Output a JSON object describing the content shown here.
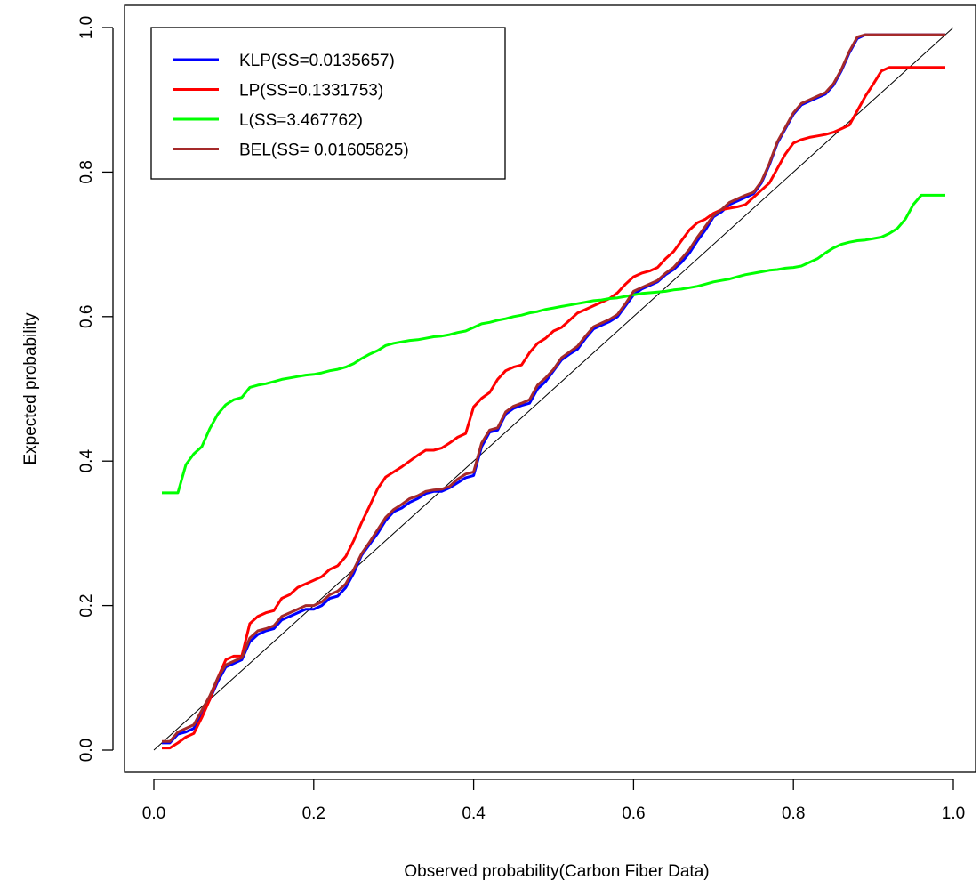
{
  "chart_data": {
    "type": "line",
    "title": "",
    "xlabel": "Observed probability(Carbon Fiber Data)",
    "ylabel": "Expected probability",
    "xlim": [
      0.0,
      1.0
    ],
    "ylim": [
      0.0,
      1.0
    ],
    "xticks": [
      "0.0",
      "0.2",
      "0.4",
      "0.6",
      "0.8",
      "1.0"
    ],
    "yticks": [
      "0.0",
      "0.2",
      "0.4",
      "0.6",
      "0.8",
      "1.0"
    ],
    "grid": false,
    "legend_position": "top-left",
    "reference_line": {
      "x": [
        0.0,
        1.0
      ],
      "y": [
        0.0,
        1.0
      ],
      "color": "#000000"
    },
    "x": [
      0.01,
      0.02,
      0.03,
      0.04,
      0.05,
      0.06,
      0.07,
      0.08,
      0.09,
      0.1,
      0.11,
      0.12,
      0.13,
      0.14,
      0.15,
      0.16,
      0.17,
      0.18,
      0.19,
      0.2,
      0.21,
      0.22,
      0.23,
      0.24,
      0.25,
      0.26,
      0.27,
      0.28,
      0.29,
      0.3,
      0.31,
      0.32,
      0.33,
      0.34,
      0.35,
      0.36,
      0.37,
      0.38,
      0.39,
      0.4,
      0.41,
      0.42,
      0.43,
      0.44,
      0.45,
      0.46,
      0.47,
      0.48,
      0.49,
      0.5,
      0.51,
      0.52,
      0.53,
      0.54,
      0.55,
      0.56,
      0.57,
      0.58,
      0.59,
      0.6,
      0.61,
      0.62,
      0.63,
      0.64,
      0.65,
      0.66,
      0.67,
      0.68,
      0.69,
      0.7,
      0.71,
      0.72,
      0.73,
      0.74,
      0.75,
      0.76,
      0.77,
      0.78,
      0.79,
      0.8,
      0.81,
      0.82,
      0.83,
      0.84,
      0.85,
      0.86,
      0.87,
      0.88,
      0.89,
      0.9,
      0.91,
      0.92,
      0.93,
      0.94,
      0.95,
      0.96,
      0.97,
      0.98,
      0.99
    ],
    "series": [
      {
        "name": "KLP(SS=0.0135657)",
        "color": "#0000FF",
        "values": [
          0.01,
          0.01,
          0.022,
          0.025,
          0.03,
          0.05,
          0.07,
          0.095,
          0.115,
          0.12,
          0.125,
          0.15,
          0.16,
          0.165,
          0.168,
          0.18,
          0.185,
          0.19,
          0.195,
          0.195,
          0.2,
          0.21,
          0.213,
          0.225,
          0.245,
          0.27,
          0.285,
          0.3,
          0.318,
          0.33,
          0.335,
          0.343,
          0.348,
          0.355,
          0.358,
          0.358,
          0.363,
          0.37,
          0.377,
          0.38,
          0.42,
          0.44,
          0.443,
          0.465,
          0.473,
          0.477,
          0.48,
          0.5,
          0.51,
          0.525,
          0.54,
          0.548,
          0.555,
          0.57,
          0.583,
          0.588,
          0.593,
          0.6,
          0.615,
          0.63,
          0.638,
          0.643,
          0.648,
          0.658,
          0.665,
          0.675,
          0.688,
          0.705,
          0.72,
          0.738,
          0.745,
          0.755,
          0.76,
          0.765,
          0.77,
          0.785,
          0.81,
          0.84,
          0.86,
          0.88,
          0.893,
          0.898,
          0.903,
          0.908,
          0.92,
          0.94,
          0.965,
          0.985,
          0.99,
          0.99,
          0.99,
          0.99,
          0.99,
          0.99,
          0.99,
          0.99,
          0.99,
          0.99,
          0.99
        ]
      },
      {
        "name": "LP(SS=0.1331753)",
        "color": "#FF0000",
        "values": [
          0.003,
          0.003,
          0.01,
          0.018,
          0.023,
          0.045,
          0.07,
          0.1,
          0.125,
          0.13,
          0.13,
          0.175,
          0.185,
          0.19,
          0.193,
          0.21,
          0.215,
          0.225,
          0.23,
          0.235,
          0.24,
          0.25,
          0.255,
          0.268,
          0.29,
          0.315,
          0.338,
          0.362,
          0.378,
          0.385,
          0.392,
          0.4,
          0.408,
          0.415,
          0.415,
          0.418,
          0.425,
          0.433,
          0.438,
          0.475,
          0.487,
          0.495,
          0.513,
          0.525,
          0.53,
          0.533,
          0.55,
          0.563,
          0.57,
          0.58,
          0.585,
          0.595,
          0.605,
          0.61,
          0.615,
          0.62,
          0.625,
          0.633,
          0.645,
          0.655,
          0.66,
          0.663,
          0.668,
          0.68,
          0.69,
          0.705,
          0.72,
          0.73,
          0.735,
          0.743,
          0.748,
          0.75,
          0.752,
          0.755,
          0.765,
          0.775,
          0.785,
          0.805,
          0.825,
          0.84,
          0.845,
          0.848,
          0.85,
          0.852,
          0.855,
          0.86,
          0.865,
          0.885,
          0.905,
          0.922,
          0.94,
          0.945,
          0.945,
          0.945,
          0.945,
          0.945,
          0.945,
          0.945,
          0.945
        ]
      },
      {
        "name": "L(SS=3.467762)",
        "color": "#00FF00",
        "values": [
          0.356,
          0.356,
          0.356,
          0.395,
          0.41,
          0.42,
          0.445,
          0.465,
          0.478,
          0.485,
          0.488,
          0.502,
          0.505,
          0.507,
          0.51,
          0.513,
          0.515,
          0.517,
          0.519,
          0.52,
          0.522,
          0.525,
          0.527,
          0.53,
          0.535,
          0.542,
          0.548,
          0.553,
          0.56,
          0.563,
          0.565,
          0.567,
          0.568,
          0.57,
          0.572,
          0.573,
          0.575,
          0.578,
          0.58,
          0.585,
          0.59,
          0.592,
          0.595,
          0.597,
          0.6,
          0.602,
          0.605,
          0.607,
          0.61,
          0.612,
          0.614,
          0.616,
          0.618,
          0.62,
          0.622,
          0.623,
          0.625,
          0.626,
          0.628,
          0.63,
          0.632,
          0.633,
          0.634,
          0.635,
          0.637,
          0.638,
          0.64,
          0.642,
          0.645,
          0.648,
          0.65,
          0.652,
          0.655,
          0.658,
          0.66,
          0.662,
          0.664,
          0.665,
          0.667,
          0.668,
          0.67,
          0.675,
          0.68,
          0.688,
          0.695,
          0.7,
          0.703,
          0.705,
          0.706,
          0.708,
          0.71,
          0.715,
          0.722,
          0.735,
          0.755,
          0.768,
          0.768,
          0.768,
          0.768
        ]
      },
      {
        "name": "BEL(SS= 0.01605825)",
        "color": "#A52A2A",
        "values": [
          0.012,
          0.012,
          0.025,
          0.03,
          0.035,
          0.055,
          0.075,
          0.1,
          0.118,
          0.123,
          0.128,
          0.155,
          0.165,
          0.168,
          0.172,
          0.185,
          0.19,
          0.195,
          0.2,
          0.2,
          0.205,
          0.215,
          0.22,
          0.23,
          0.25,
          0.272,
          0.288,
          0.305,
          0.322,
          0.333,
          0.34,
          0.348,
          0.352,
          0.358,
          0.36,
          0.361,
          0.365,
          0.375,
          0.382,
          0.385,
          0.425,
          0.443,
          0.446,
          0.468,
          0.476,
          0.48,
          0.485,
          0.505,
          0.515,
          0.527,
          0.543,
          0.551,
          0.559,
          0.573,
          0.586,
          0.591,
          0.596,
          0.603,
          0.618,
          0.635,
          0.64,
          0.645,
          0.65,
          0.66,
          0.668,
          0.68,
          0.693,
          0.71,
          0.725,
          0.74,
          0.748,
          0.758,
          0.763,
          0.768,
          0.772,
          0.787,
          0.812,
          0.842,
          0.862,
          0.882,
          0.895,
          0.9,
          0.905,
          0.91,
          0.922,
          0.942,
          0.967,
          0.987,
          0.99,
          0.99,
          0.99,
          0.99,
          0.99,
          0.99,
          0.99,
          0.99,
          0.99,
          0.99,
          0.99
        ]
      }
    ]
  }
}
